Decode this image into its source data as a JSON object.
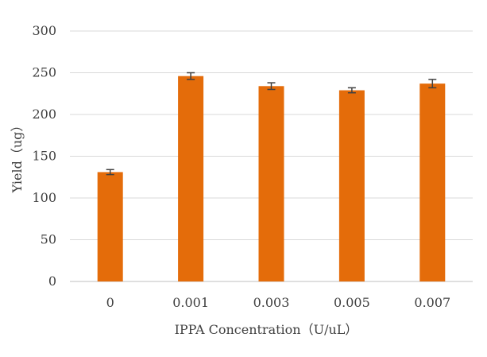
{
  "chart_data": {
    "type": "bar",
    "categories": [
      "0",
      "0.001",
      "0.003",
      "0.005",
      "0.007"
    ],
    "values": [
      131,
      246,
      234,
      229,
      237
    ],
    "errors": [
      3,
      4,
      4,
      3,
      5
    ],
    "xlabel": "IPPA Concentration（U/uL）",
    "ylabel": "Yield（ug）",
    "ylim": [
      0,
      300
    ],
    "yticks": [
      0,
      50,
      100,
      150,
      200,
      250,
      300
    ],
    "grid": true,
    "colors": {
      "bar": "#e46c0a",
      "error_bar": "#404040",
      "grid": "#d9d9d9"
    }
  }
}
